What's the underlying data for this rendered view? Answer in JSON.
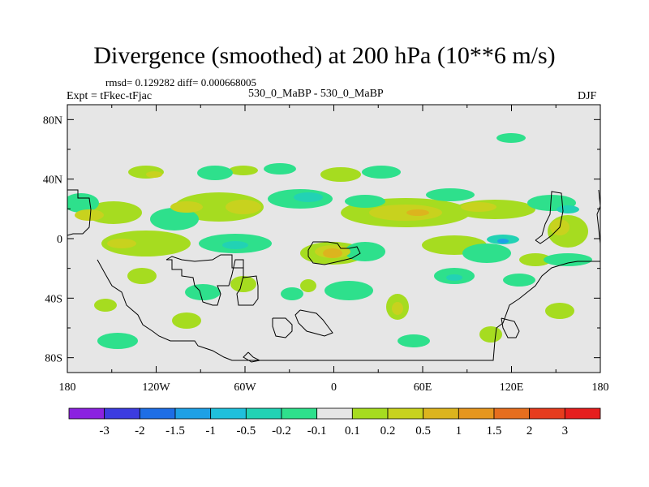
{
  "title": "Divergence (smoothed) at 200 hPa (10**6 m/s)",
  "stats": "rmsd= 0.129282 diff= 0.000668005",
  "experiment": "Expt = tFkec-tFjac",
  "case": "530_0_MaBP - 530_0_MaBP",
  "season": "DJF",
  "chart_data": {
    "type": "heatmap",
    "x_ticks": [
      "180",
      "120W",
      "60W",
      "0",
      "60E",
      "120E",
      "180"
    ],
    "y_ticks": [
      "80N",
      "40N",
      "0",
      "40S",
      "80S"
    ],
    "xlim": [
      -180,
      180
    ],
    "ylim": [
      -90,
      90
    ],
    "colorbar": {
      "labels": [
        "-3",
        "-2",
        "-1.5",
        "-1",
        "-0.5",
        "-0.2",
        "-0.1",
        "0.1",
        "0.2",
        "0.5",
        "1",
        "1.5",
        "2",
        "3"
      ],
      "colors": [
        "#8b22e0",
        "#3c3ce0",
        "#1e6ee6",
        "#1ea0e6",
        "#20c0dc",
        "#22d2b4",
        "#2ee08c",
        "#e6e6e6",
        "#a6dc20",
        "#c8d21e",
        "#dcb41e",
        "#e6961e",
        "#e66e1e",
        "#e63c1e",
        "#e61e1e"
      ]
    },
    "background_color": "#e6e6e6"
  }
}
